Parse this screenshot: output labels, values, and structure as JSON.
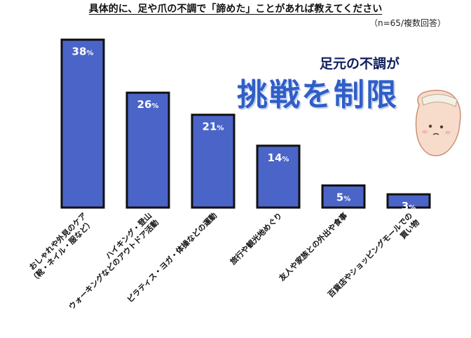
{
  "header": {
    "title": "具体的に、足や爪の不調で「諦めた」ことがあれば教えてください",
    "note": "（n=65/複数回答）"
  },
  "headline": {
    "sub": "足元の不調が",
    "main": "挑戦を制限"
  },
  "chart_data": {
    "type": "bar",
    "unit": "%",
    "categories": [
      [
        "おしゃれや外見のケア",
        "（靴・ネイル・服など）"
      ],
      [
        "ハイキング・登山",
        "ウォーキングなどのアウトドア活動"
      ],
      [
        "ピラティス・ヨガ・体操などの運動"
      ],
      [
        "旅行や観光地めぐり"
      ],
      [
        "友人や家族との外出や食事"
      ],
      [
        "百貨店やショッピングモールでの",
        "買い物"
      ]
    ],
    "values": [
      38,
      26,
      21,
      14,
      5,
      3
    ],
    "ylim": [
      0,
      40
    ],
    "colors": {
      "bar": "#4a64c8",
      "border": "#111111",
      "label": "#ffffff"
    }
  }
}
